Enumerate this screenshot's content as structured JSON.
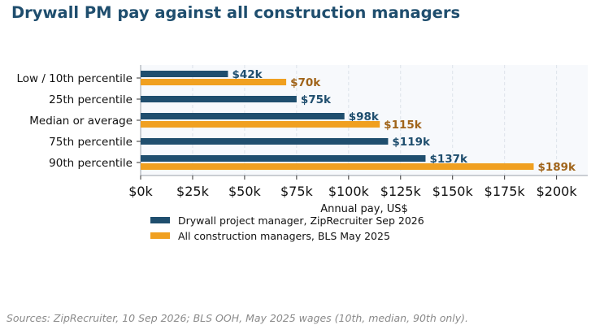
{
  "chart_data": {
    "type": "bar",
    "orientation": "horizontal",
    "title": "Drywall PM pay against all construction managers",
    "xlabel": "Annual pay, US$",
    "ylabel": "",
    "xlim": [
      0,
      215000
    ],
    "xticks": [
      0,
      25000,
      50000,
      75000,
      100000,
      125000,
      150000,
      175000,
      200000
    ],
    "xtick_labels": [
      "$0k",
      "$25k",
      "$50k",
      "$75k",
      "$100k",
      "$125k",
      "$150k",
      "$175k",
      "$200k"
    ],
    "categories": [
      "Low / 10th percentile",
      "25th percentile",
      "Median or average",
      "75th percentile",
      "90th percentile"
    ],
    "series": [
      {
        "name": "Drywall project manager, ZipRecruiter Sep 2026",
        "color": "#1f4e6e",
        "values": [
          42000,
          75000,
          98000,
          119000,
          137000
        ],
        "labels": [
          "$42k",
          "$75k",
          "$98k",
          "$119k",
          "$137k"
        ]
      },
      {
        "name": "All construction managers, BLS May 2025",
        "color": "#f0a020",
        "label_color": "#a0641a",
        "values": [
          70000,
          null,
          115000,
          null,
          189000
        ],
        "labels": [
          "$70k",
          null,
          "$115k",
          null,
          "$189k"
        ]
      }
    ],
    "grid": "vertical dashed",
    "legend_position": "below plot, left"
  },
  "source_note": "Sources: ZipRecruiter, 10 Sep 2026; BLS OOH, May 2025 wages (10th, median, 90th only)."
}
